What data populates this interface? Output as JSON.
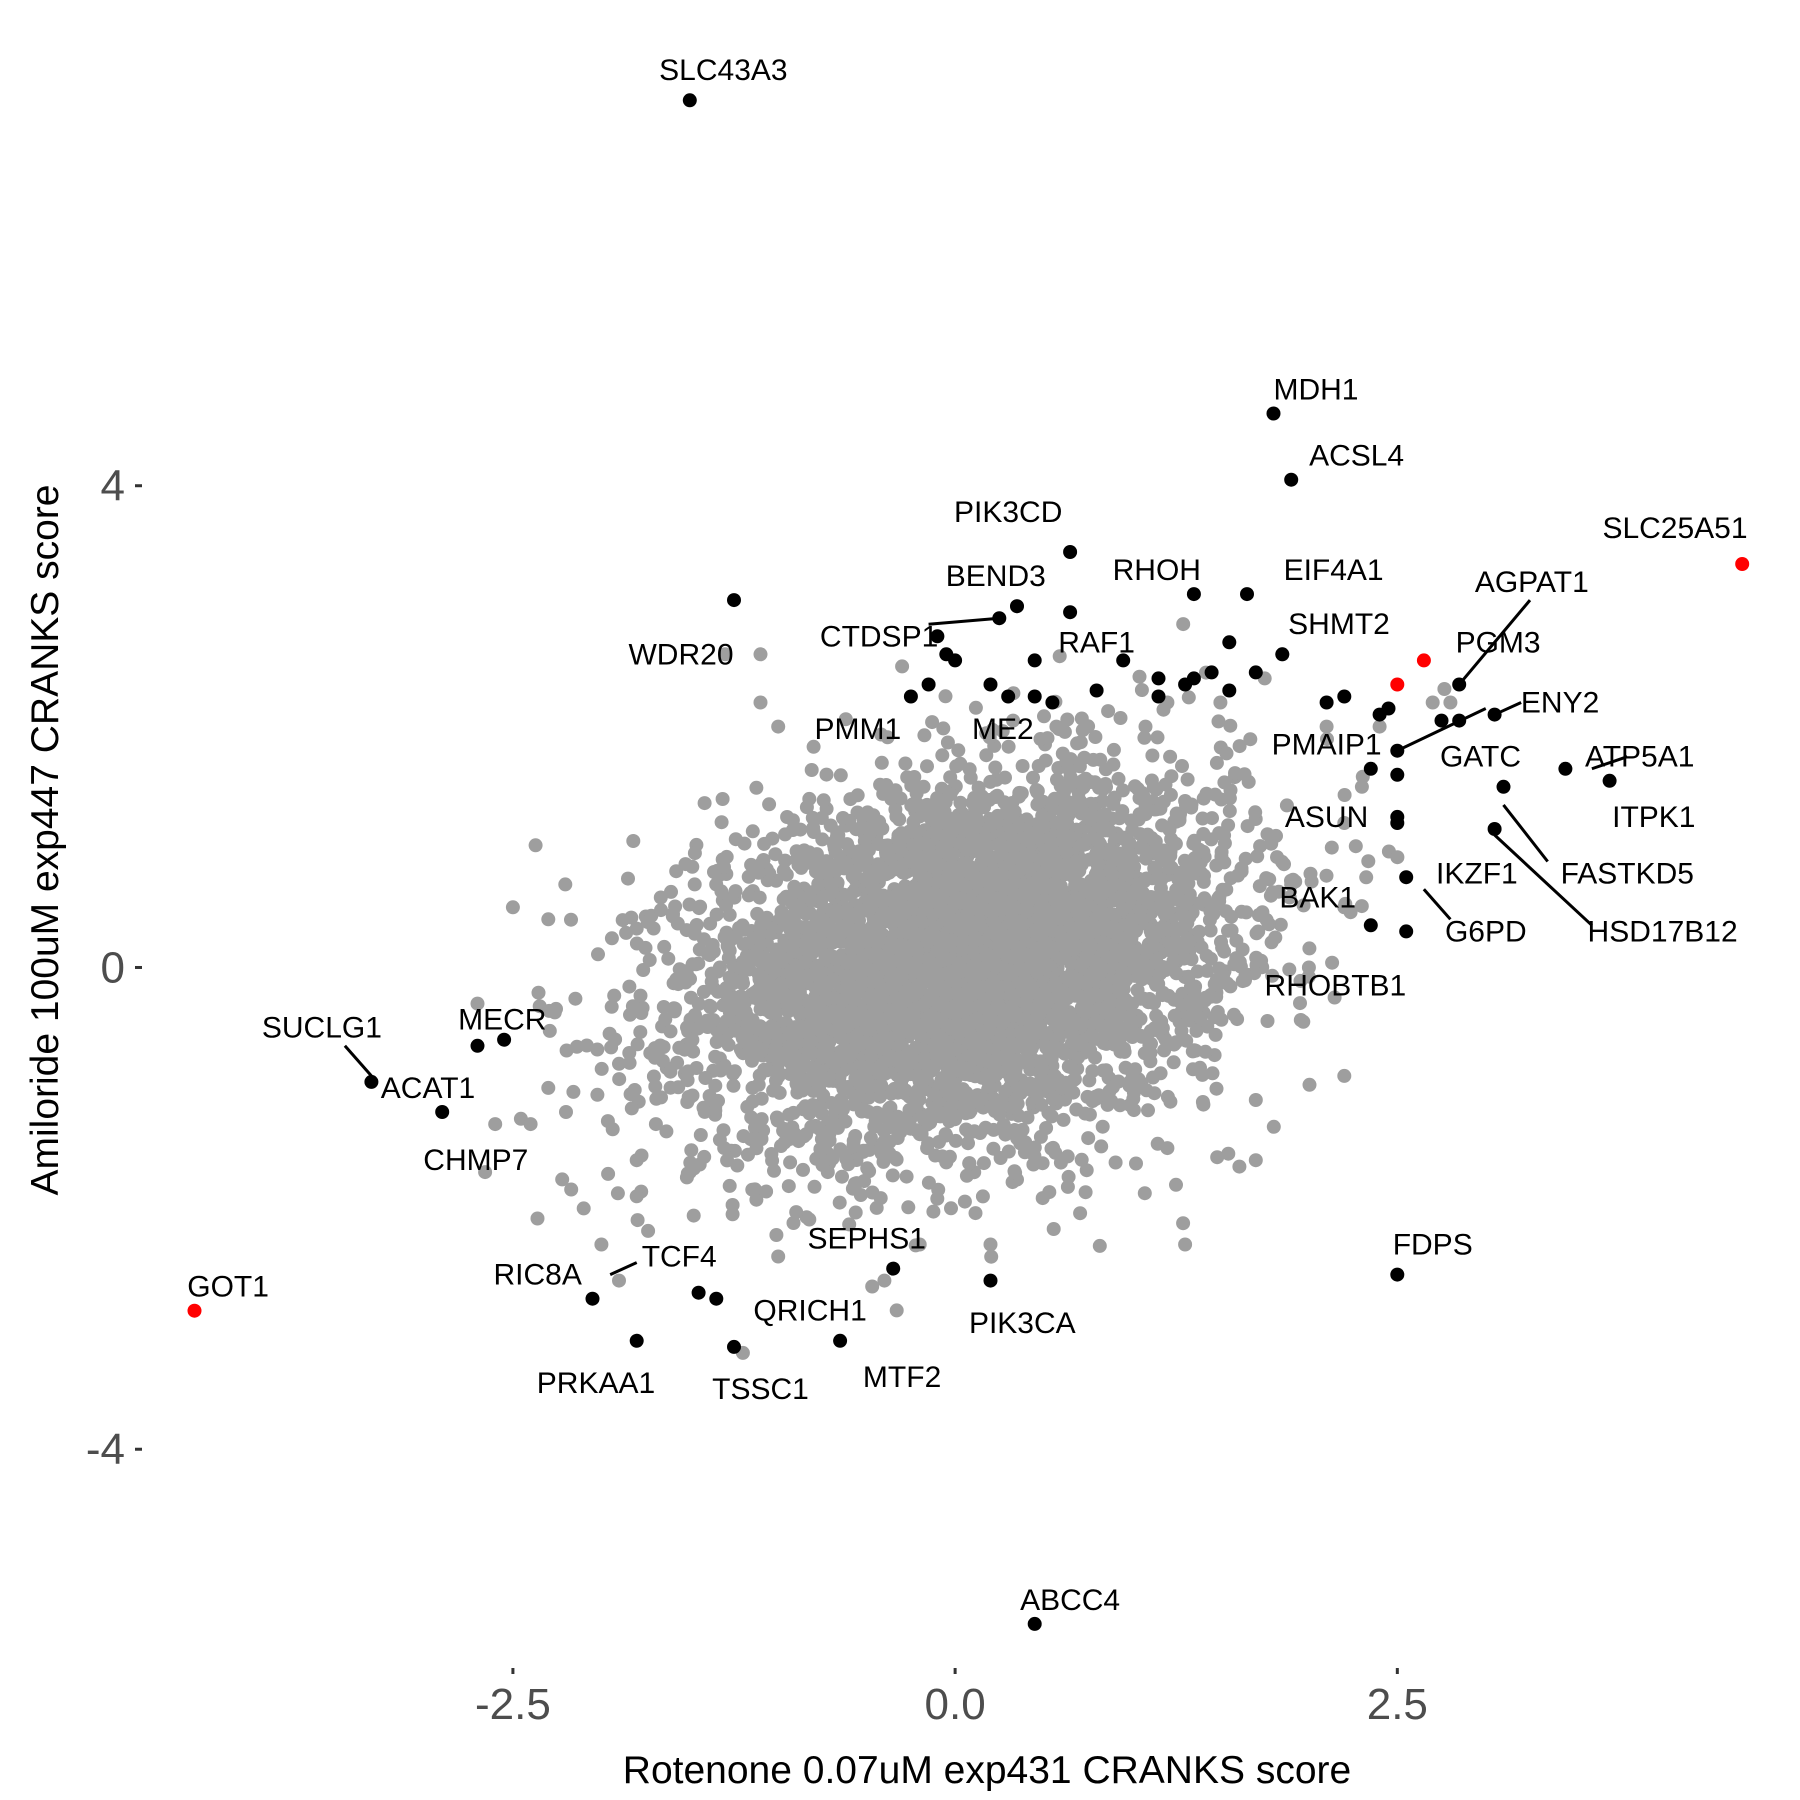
{
  "chart_data": {
    "type": "scatter",
    "xlabel": "Rotenone 0.07uM exp431 CRANKS score",
    "ylabel": "Amiloride 100uM exp447 CRANKS score",
    "xlim": [
      -4.58,
      4.72
    ],
    "ylim": [
      -5.75,
      7.95
    ],
    "x_ticks": [
      {
        "value": -2.5,
        "label": "-2.5"
      },
      {
        "value": 0.0,
        "label": "0.0"
      },
      {
        "value": 2.5,
        "label": "2.5"
      }
    ],
    "y_ticks": [
      {
        "value": 4,
        "label": "4"
      },
      {
        "value": 0,
        "label": "0"
      },
      {
        "value": -4,
        "label": "-4"
      }
    ],
    "grid": false,
    "colors": {
      "background": "#ffffff",
      "gray": "#9e9e9e",
      "black": "#000000",
      "red": "#ff0000"
    },
    "cloud": {
      "center_x": 0.05,
      "center_y": 0.05,
      "sd_x": 0.75,
      "sd_y": 0.75,
      "correlation": 0.25,
      "n_points": 5200
    },
    "series": [
      {
        "color": "gray",
        "points": [
          [
            -2.5,
            0.5
          ],
          [
            -2.3,
            0.4
          ],
          [
            -2.7,
            -0.3
          ],
          [
            -2.3,
            -1.0
          ],
          [
            -2.4,
            -1.3
          ],
          [
            -2.6,
            -1.3
          ],
          [
            -2.2,
            -1.2
          ],
          [
            -2.1,
            -2.0
          ],
          [
            -2.0,
            -2.3
          ],
          [
            -1.9,
            -2.6
          ],
          [
            -1.8,
            -1.9
          ],
          [
            -1.9,
            -0.8
          ],
          [
            -1.3,
            2.6
          ],
          [
            -1.1,
            2.6
          ],
          [
            -1.1,
            2.2
          ],
          [
            -1.0,
            2.0
          ],
          [
            -0.3,
            2.5
          ],
          [
            0.35,
            3.0
          ],
          [
            1.85,
            2.6
          ],
          [
            1.75,
            2.4
          ],
          [
            1.5,
            2.2
          ],
          [
            1.2,
            2.2
          ],
          [
            2.4,
            2.0
          ],
          [
            2.1,
            2.0
          ],
          [
            2.3,
            1.5
          ],
          [
            2.2,
            1.2
          ],
          [
            2.2,
            0.5
          ],
          [
            2.0,
            0.0
          ],
          [
            2.2,
            -0.9
          ],
          [
            1.7,
            -1.1
          ],
          [
            1.7,
            -1.6
          ],
          [
            1.3,
            -2.3
          ],
          [
            1.2,
            -1.5
          ],
          [
            0.2,
            -2.3
          ],
          [
            -0.2,
            -2.3
          ],
          [
            -0.4,
            -2.6
          ],
          [
            -1.0,
            -2.4
          ],
          [
            -1.2,
            -3.2
          ],
          [
            -1.5,
            -1.7
          ],
          [
            -1.8,
            -1.6
          ],
          [
            2.7,
            2.2
          ],
          [
            2.8,
            2.2
          ]
        ]
      },
      {
        "color": "black",
        "points": [
          [
            -1.5,
            7.2
          ],
          [
            1.8,
            4.6
          ],
          [
            1.9,
            4.05
          ],
          [
            0.65,
            3.45
          ],
          [
            0.35,
            3.0
          ],
          [
            0.25,
            2.9
          ],
          [
            1.35,
            3.1
          ],
          [
            1.65,
            3.1
          ],
          [
            -1.25,
            3.05
          ],
          [
            -0.1,
            2.75
          ],
          [
            -0.05,
            2.6
          ],
          [
            0.0,
            2.55
          ],
          [
            -0.15,
            2.35
          ],
          [
            -0.25,
            2.25
          ],
          [
            0.2,
            2.35
          ],
          [
            0.3,
            2.25
          ],
          [
            0.45,
            2.55
          ],
          [
            0.45,
            2.25
          ],
          [
            0.55,
            2.2
          ],
          [
            0.65,
            2.95
          ],
          [
            0.8,
            2.3
          ],
          [
            0.95,
            2.55
          ],
          [
            1.15,
            2.4
          ],
          [
            1.15,
            2.25
          ],
          [
            1.3,
            2.35
          ],
          [
            1.35,
            2.4
          ],
          [
            1.45,
            2.45
          ],
          [
            1.55,
            2.7
          ],
          [
            1.55,
            2.3
          ],
          [
            1.7,
            2.45
          ],
          [
            1.85,
            2.6
          ],
          [
            2.1,
            2.2
          ],
          [
            2.2,
            2.25
          ],
          [
            2.4,
            2.1
          ],
          [
            2.45,
            2.15
          ],
          [
            2.5,
            1.8
          ],
          [
            2.35,
            1.65
          ],
          [
            2.5,
            1.6
          ],
          [
            2.75,
            2.05
          ],
          [
            2.85,
            2.35
          ],
          [
            2.85,
            2.05
          ],
          [
            3.05,
            2.1
          ],
          [
            3.1,
            1.5
          ],
          [
            3.05,
            1.15
          ],
          [
            3.45,
            1.65
          ],
          [
            3.7,
            1.55
          ],
          [
            2.5,
            1.25
          ],
          [
            2.5,
            1.2
          ],
          [
            2.55,
            0.75
          ],
          [
            2.35,
            0.35
          ],
          [
            2.55,
            0.3
          ],
          [
            -2.7,
            -0.65
          ],
          [
            -2.55,
            -0.6
          ],
          [
            -3.3,
            -0.95
          ],
          [
            -2.9,
            -1.2
          ],
          [
            -2.05,
            -2.75
          ],
          [
            -1.8,
            -3.1
          ],
          [
            -1.45,
            -2.7
          ],
          [
            -1.35,
            -2.75
          ],
          [
            -1.25,
            -3.15
          ],
          [
            -0.65,
            -3.1
          ],
          [
            -0.35,
            -2.5
          ],
          [
            0.2,
            -2.6
          ],
          [
            0.45,
            -5.45
          ],
          [
            2.5,
            -2.55
          ]
        ]
      },
      {
        "color": "red",
        "points": [
          [
            4.45,
            3.35
          ],
          [
            2.65,
            2.55
          ],
          [
            2.5,
            2.35
          ],
          [
            -4.3,
            -2.85
          ]
        ]
      }
    ],
    "labels": [
      {
        "text": "SLC43A3",
        "x": -1.5,
        "y": 7.2,
        "lx": -1.31,
        "ly": 7.45
      },
      {
        "text": "MDH1",
        "x": 1.8,
        "y": 4.6,
        "lx": 2.04,
        "ly": 4.8
      },
      {
        "text": "ACSL4",
        "x": 1.9,
        "y": 4.05,
        "lx": 2.27,
        "ly": 4.25
      },
      {
        "text": "PIK3CD",
        "x": 0.65,
        "y": 3.45,
        "lx": 0.3,
        "ly": 3.78
      },
      {
        "text": "SLC25A51",
        "x": 4.45,
        "y": 3.35,
        "lx": 4.07,
        "ly": 3.65
      },
      {
        "text": "BEND3",
        "x": 0.35,
        "y": 3.0,
        "lx": 0.23,
        "ly": 3.25
      },
      {
        "text": "RHOH",
        "x": 1.35,
        "y": 3.1,
        "lx": 1.14,
        "ly": 3.3
      },
      {
        "text": "EIF4A1",
        "x": 1.65,
        "y": 3.1,
        "lx": 2.14,
        "ly": 3.3
      },
      {
        "text": "AGPAT1",
        "x": 2.85,
        "y": 2.35,
        "lx": 3.26,
        "ly": 3.2,
        "line": [
          [
            2.85,
            2.35
          ],
          [
            3.25,
            3.05
          ]
        ]
      },
      {
        "text": "WDR20",
        "x": -1.25,
        "y": 3.05,
        "lx": -1.55,
        "ly": 2.6
      },
      {
        "text": "CTDSP1",
        "x": 0.25,
        "y": 2.9,
        "lx": -0.43,
        "ly": 2.75,
        "line": [
          [
            0.25,
            2.9
          ],
          [
            -0.15,
            2.85
          ]
        ]
      },
      {
        "text": "SHMT2",
        "x": 1.85,
        "y": 2.6,
        "lx": 2.17,
        "ly": 2.85
      },
      {
        "text": "RAF1",
        "x": 0.95,
        "y": 2.55,
        "lx": 0.8,
        "ly": 2.7
      },
      {
        "text": "PGM3",
        "x": 2.75,
        "y": 2.05,
        "lx": 3.07,
        "ly": 2.7
      },
      {
        "text": "ENY2",
        "x": 3.05,
        "y": 2.1,
        "lx": 3.42,
        "ly": 2.2,
        "line": [
          [
            3.05,
            2.1
          ],
          [
            3.2,
            2.2
          ]
        ]
      },
      {
        "text": "PMM1",
        "x": -0.25,
        "y": 2.25,
        "lx": -0.55,
        "ly": 1.98
      },
      {
        "text": "ME2",
        "x": 0.2,
        "y": 2.35,
        "lx": 0.27,
        "ly": 1.98
      },
      {
        "text": "PMAIP1",
        "x": 2.4,
        "y": 2.1,
        "lx": 2.1,
        "ly": 1.85
      },
      {
        "text": "GATC",
        "x": 2.5,
        "y": 1.8,
        "lx": 2.97,
        "ly": 1.75,
        "line": [
          [
            2.5,
            1.8
          ],
          [
            3.0,
            2.15
          ]
        ]
      },
      {
        "text": "ATP5A1",
        "x": 3.45,
        "y": 1.65,
        "lx": 3.87,
        "ly": 1.75,
        "line": [
          [
            3.6,
            1.65
          ],
          [
            3.8,
            1.75
          ]
        ]
      },
      {
        "text": "ITPK1",
        "x": 3.7,
        "y": 1.55,
        "lx": 3.95,
        "ly": 1.25
      },
      {
        "text": "ASUN",
        "x": 2.5,
        "y": 1.25,
        "lx": 2.1,
        "ly": 1.25
      },
      {
        "text": "FASTKD5",
        "x": 3.1,
        "y": 1.5,
        "lx": 3.8,
        "ly": 0.78,
        "line": [
          [
            3.1,
            1.35
          ],
          [
            3.35,
            0.88
          ]
        ]
      },
      {
        "text": "IKZF1",
        "x": 2.55,
        "y": 0.75,
        "lx": 2.95,
        "ly": 0.78
      },
      {
        "text": "BAK1",
        "x": 2.35,
        "y": 0.35,
        "lx": 2.05,
        "ly": 0.58
      },
      {
        "text": "HSD17B12",
        "x": 3.05,
        "y": 1.15,
        "lx": 4.0,
        "ly": 0.3,
        "line": [
          [
            3.05,
            1.1
          ],
          [
            3.6,
            0.35
          ]
        ]
      },
      {
        "text": "G6PD",
        "x": 2.55,
        "y": 0.3,
        "lx": 3.0,
        "ly": 0.3,
        "line": [
          [
            2.65,
            0.65
          ],
          [
            2.8,
            0.4
          ]
        ]
      },
      {
        "text": "RHOBTB1",
        "x": 2.35,
        "y": 0.35,
        "lx": 2.15,
        "ly": -0.15
      },
      {
        "text": "SUCLG1",
        "x": -3.3,
        "y": -0.95,
        "lx": -3.58,
        "ly": -0.5,
        "line": [
          [
            -3.3,
            -0.9
          ],
          [
            -3.45,
            -0.65
          ]
        ]
      },
      {
        "text": "MECR",
        "x": -2.55,
        "y": -0.6,
        "lx": -2.56,
        "ly": -0.43
      },
      {
        "text": "ACAT1",
        "x": -2.7,
        "y": -0.65,
        "lx": -2.98,
        "ly": -1.0
      },
      {
        "text": "CHMP7",
        "x": -2.9,
        "y": -1.2,
        "lx": -2.71,
        "ly": -1.6
      },
      {
        "text": "GOT1",
        "x": -4.3,
        "y": -2.85,
        "lx": -4.11,
        "ly": -2.65
      },
      {
        "text": "TCF4",
        "x": -1.45,
        "y": -2.7,
        "lx": -1.56,
        "ly": -2.4,
        "line": [
          [
            -1.95,
            -2.55
          ],
          [
            -1.8,
            -2.45
          ]
        ]
      },
      {
        "text": "RIC8A",
        "x": -2.05,
        "y": -2.75,
        "lx": -2.36,
        "ly": -2.55
      },
      {
        "text": "SEPHS1",
        "x": -0.35,
        "y": -2.5,
        "lx": -0.5,
        "ly": -2.25
      },
      {
        "text": "QRICH1",
        "x": -1.35,
        "y": -2.75,
        "lx": -0.82,
        "ly": -2.85
      },
      {
        "text": "PIK3CA",
        "x": 0.2,
        "y": -2.6,
        "lx": 0.38,
        "ly": -2.95
      },
      {
        "text": "FDPS",
        "x": 2.5,
        "y": -2.55,
        "lx": 2.7,
        "ly": -2.3
      },
      {
        "text": "PRKAA1",
        "x": -1.8,
        "y": -3.1,
        "lx": -2.03,
        "ly": -3.45
      },
      {
        "text": "TSSC1",
        "x": -1.25,
        "y": -3.15,
        "lx": -1.1,
        "ly": -3.5
      },
      {
        "text": "MTF2",
        "x": -0.65,
        "y": -3.1,
        "lx": -0.3,
        "ly": -3.4
      },
      {
        "text": "ABCC4",
        "x": 0.45,
        "y": -5.45,
        "lx": 0.65,
        "ly": -5.25
      }
    ]
  }
}
